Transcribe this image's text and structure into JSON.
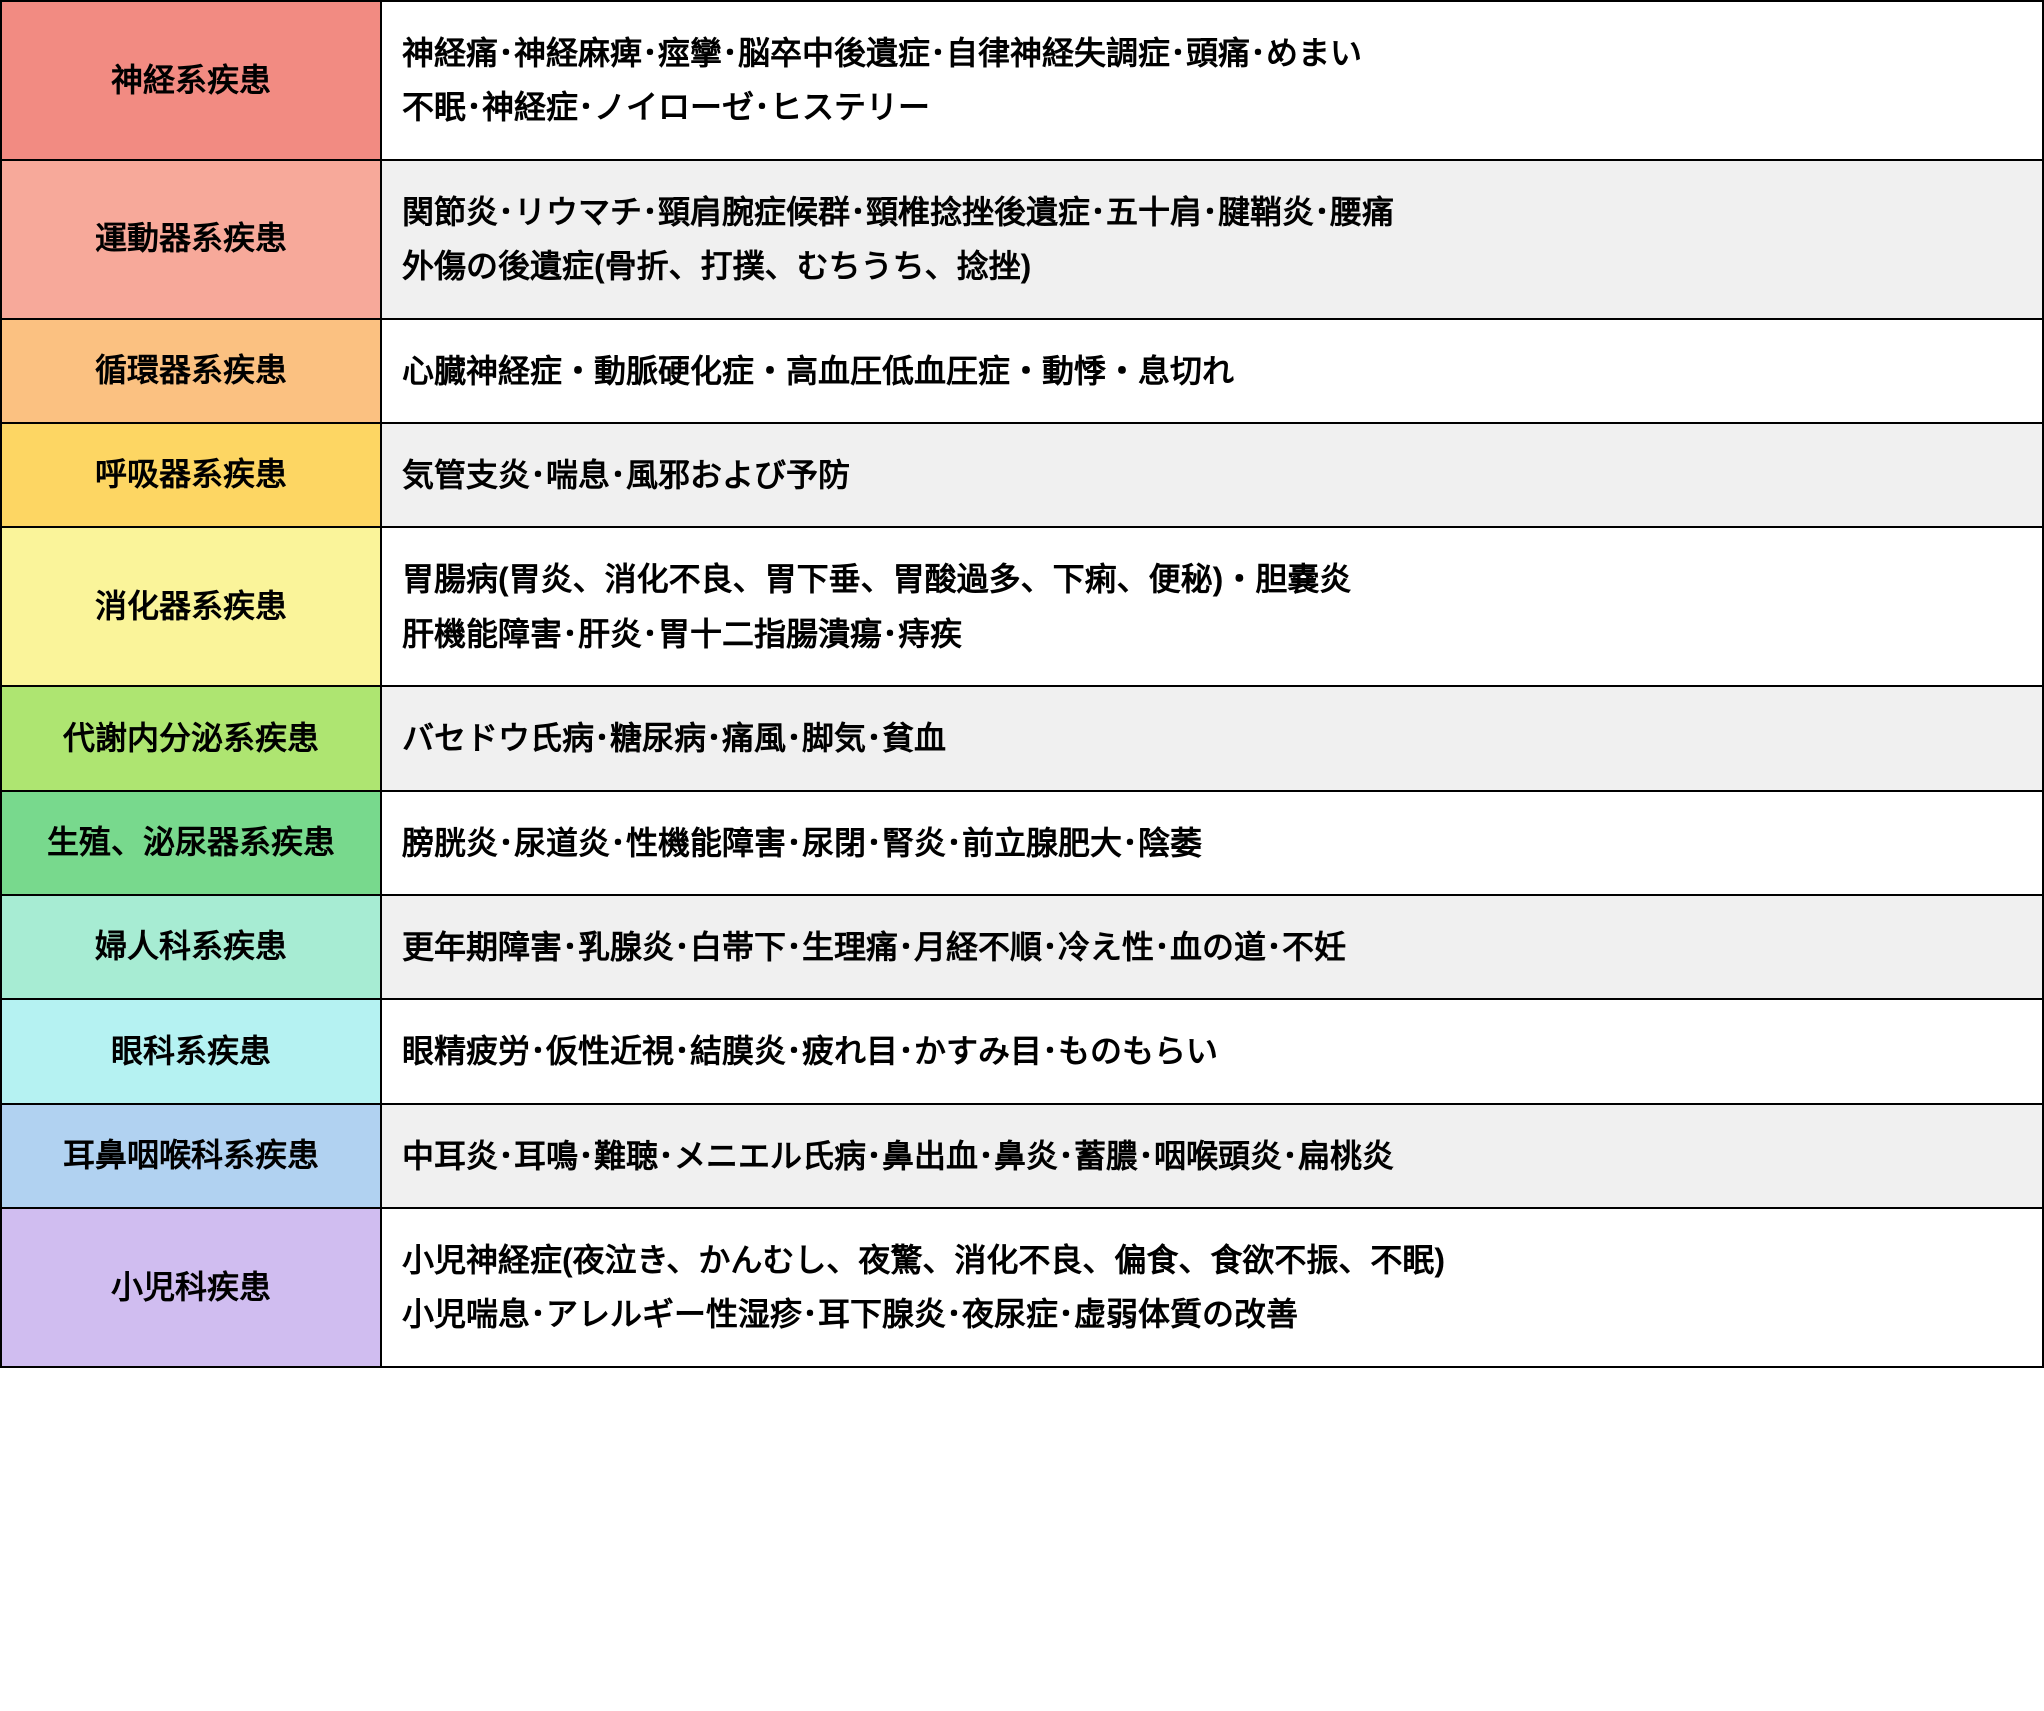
{
  "table": {
    "columns": [
      "category",
      "content"
    ],
    "category_width": 380,
    "content_bg_alternating": [
      "#ffffff",
      "#f0f0f0"
    ],
    "border_color": "#000000",
    "border_width": 2,
    "font_size": 32,
    "font_weight": "bold",
    "text_color": "#000000",
    "rows": [
      {
        "category": "神経系疾患",
        "category_bg": "#f28b82",
        "content": "神経痛･神経麻痺･痙攣･脳卒中後遺症･自律神経失調症･頭痛･めまい\n不眠･神経症･ノイローゼ･ヒステリー",
        "content_bg": "#ffffff"
      },
      {
        "category": "運動器系疾患",
        "category_bg": "#f7a99a",
        "content": "関節炎･リウマチ･頸肩腕症候群･頸椎捻挫後遺症･五十肩･腱鞘炎･腰痛\n外傷の後遺症(骨折、打撲、むちうち、捻挫)",
        "content_bg": "#f0f0f0"
      },
      {
        "category": "循環器系疾患",
        "category_bg": "#fbc181",
        "content": "心臓神経症・動脈硬化症・高血圧低血圧症・動悸・息切れ",
        "content_bg": "#ffffff"
      },
      {
        "category": "呼吸器系疾患",
        "category_bg": "#fdd663",
        "content": "気管支炎･喘息･風邪および予防",
        "content_bg": "#f0f0f0"
      },
      {
        "category": "消化器系疾患",
        "category_bg": "#faf49a",
        "content": "胃腸病(胃炎、消化不良、胃下垂、胃酸過多、下痢、便秘)・胆嚢炎\n肝機能障害･肝炎･胃十二指腸潰瘍･痔疾",
        "content_bg": "#ffffff"
      },
      {
        "category": "代謝内分泌系疾患",
        "category_bg": "#aee571",
        "content": "バセドウ氏病･糖尿病･痛風･脚気･貧血",
        "content_bg": "#f0f0f0"
      },
      {
        "category": "生殖、泌尿器系疾患",
        "category_bg": "#78d98d",
        "content": "膀胱炎･尿道炎･性機能障害･尿閉･腎炎･前立腺肥大･陰萎",
        "content_bg": "#ffffff"
      },
      {
        "category": "婦人科系疾患",
        "category_bg": "#a7ecd3",
        "content": "更年期障害･乳腺炎･白帯下･生理痛･月経不順･冷え性･血の道･不妊",
        "content_bg": "#f0f0f0"
      },
      {
        "category": "眼科系疾患",
        "category_bg": "#b5f2f2",
        "content": "眼精疲労･仮性近視･結膜炎･疲れ目･かすみ目･ものもらい",
        "content_bg": "#ffffff"
      },
      {
        "category": "耳鼻咽喉科系疾患",
        "category_bg": "#b1d2f1",
        "content": "中耳炎･耳鳴･難聴･メニエル氏病･鼻出血･鼻炎･蓄膿･咽喉頭炎･扁桃炎",
        "content_bg": "#f0f0f0"
      },
      {
        "category": "小児科疾患",
        "category_bg": "#d0bdf0",
        "content": "小児神経症(夜泣き、かんむし、夜驚、消化不良、偏食、食欲不振、不眠)\n小児喘息･アレルギー性湿疹･耳下腺炎･夜尿症･虚弱体質の改善",
        "content_bg": "#ffffff"
      }
    ]
  }
}
